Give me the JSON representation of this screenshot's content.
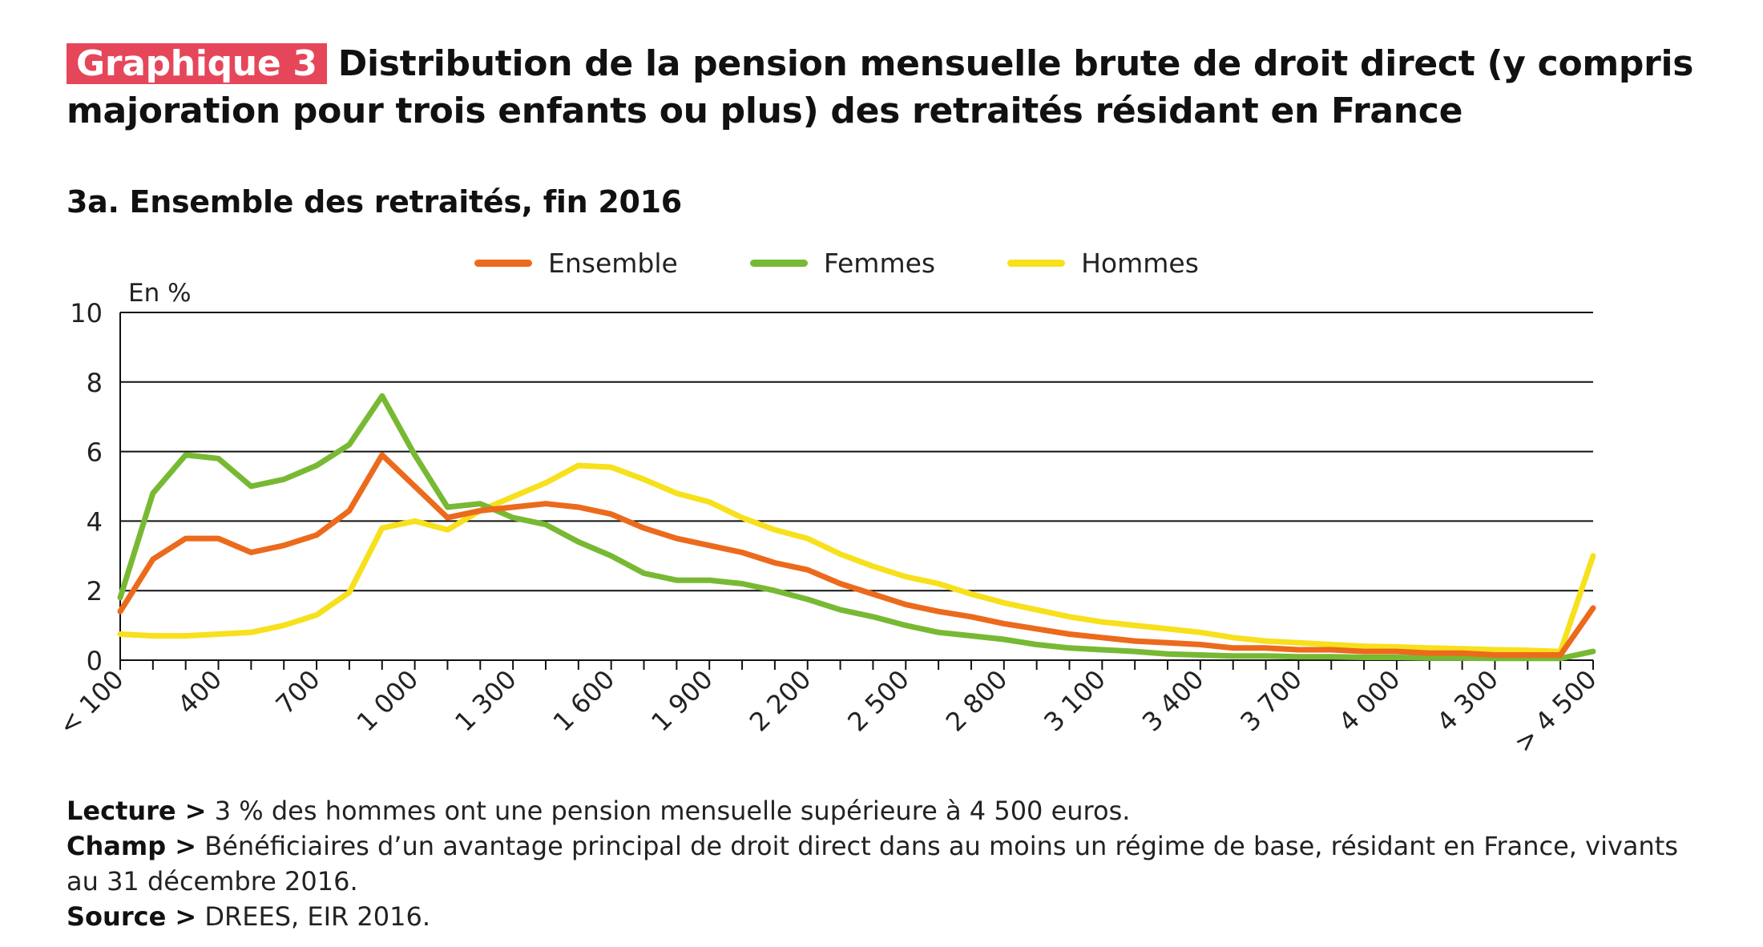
{
  "header": {
    "badge": "Graphique 3",
    "title": "Distribution de la pension mensuelle brute de droit direct (y compris majoration pour trois enfants ou plus) des retraités résidant en France",
    "subtitle": "3a. Ensemble des retraités, fin 2016"
  },
  "colors": {
    "badge": "#e6465a",
    "ensemble": "#ec6a1c",
    "femmes": "#78b934",
    "hommes": "#f7e01c"
  },
  "chart_data": {
    "type": "line",
    "ylabel": "En %",
    "ylim": [
      0,
      10
    ],
    "yticks": [
      "0",
      "2",
      "4",
      "6",
      "8",
      "10"
    ],
    "xticks": [
      "< 100",
      "400",
      "700",
      "1 000",
      "1 300",
      "1 600",
      "1 900",
      "2 200",
      "2 500",
      "2 800",
      "3 100",
      "3 400",
      "3 700",
      "4 000",
      "4 300",
      "> 4 500"
    ],
    "x": [
      100,
      200,
      300,
      400,
      500,
      600,
      700,
      800,
      900,
      1000,
      1100,
      1200,
      1300,
      1400,
      1500,
      1600,
      1700,
      1800,
      1900,
      2000,
      2100,
      2200,
      2300,
      2400,
      2500,
      2600,
      2700,
      2800,
      2900,
      3000,
      3100,
      3200,
      3300,
      3400,
      3500,
      3600,
      3700,
      3800,
      3900,
      4000,
      4100,
      4200,
      4300,
      4400,
      4500,
      4600
    ],
    "grid": true,
    "legend_position": "top",
    "series": [
      {
        "name": "Ensemble",
        "color_key": "ensemble",
        "values": [
          1.4,
          2.9,
          3.5,
          3.5,
          3.1,
          3.3,
          3.6,
          4.3,
          5.9,
          5.0,
          4.1,
          4.3,
          4.4,
          4.5,
          4.4,
          4.2,
          3.8,
          3.5,
          3.3,
          3.1,
          2.8,
          2.6,
          2.2,
          1.9,
          1.6,
          1.4,
          1.25,
          1.05,
          0.9,
          0.75,
          0.65,
          0.55,
          0.5,
          0.45,
          0.35,
          0.35,
          0.3,
          0.3,
          0.25,
          0.25,
          0.2,
          0.2,
          0.15,
          0.15,
          0.15,
          1.5
        ]
      },
      {
        "name": "Femmes",
        "color_key": "femmes",
        "values": [
          1.8,
          4.8,
          5.9,
          5.8,
          5.0,
          5.2,
          5.6,
          6.2,
          7.6,
          5.9,
          4.4,
          4.5,
          4.1,
          3.9,
          3.4,
          3.0,
          2.5,
          2.3,
          2.3,
          2.2,
          2.0,
          1.75,
          1.45,
          1.25,
          1.0,
          0.8,
          0.7,
          0.6,
          0.45,
          0.35,
          0.3,
          0.25,
          0.18,
          0.15,
          0.12,
          0.12,
          0.1,
          0.1,
          0.08,
          0.08,
          0.06,
          0.06,
          0.05,
          0.05,
          0.05,
          0.25
        ]
      },
      {
        "name": "Hommes",
        "color_key": "hommes",
        "values": [
          0.75,
          0.7,
          0.7,
          0.75,
          0.8,
          1.0,
          1.3,
          1.95,
          3.8,
          4.0,
          3.75,
          4.3,
          4.7,
          5.1,
          5.6,
          5.55,
          5.2,
          4.8,
          4.55,
          4.1,
          3.75,
          3.5,
          3.05,
          2.7,
          2.4,
          2.2,
          1.9,
          1.65,
          1.45,
          1.25,
          1.1,
          1.0,
          0.9,
          0.8,
          0.65,
          0.55,
          0.5,
          0.45,
          0.4,
          0.38,
          0.35,
          0.33,
          0.3,
          0.28,
          0.25,
          3.0
        ]
      }
    ]
  },
  "notes": [
    {
      "key": "Lecture >",
      "text": "3 % des hommes ont une pension mensuelle supérieure à 4 500 euros."
    },
    {
      "key": "Champ >",
      "text": "Bénéficiaires d’un avantage principal de droit direct dans au moins un régime de base, résidant en France, vivants au 31 décembre 2016."
    },
    {
      "key": "Source >",
      "text": "DREES, EIR 2016."
    }
  ]
}
